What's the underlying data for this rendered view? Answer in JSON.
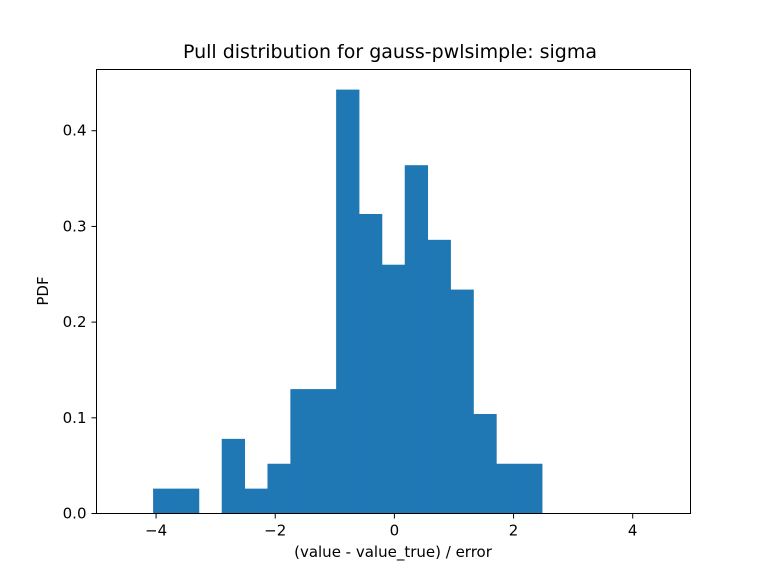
{
  "chart_data": {
    "type": "bar",
    "title": "Pull distribution for gauss-pwlsimple: sigma",
    "xlabel": "(value - value_true) / error",
    "ylabel": "PDF",
    "xlim": [
      -5.0,
      4.97
    ],
    "ylim": [
      0.0,
      0.464
    ],
    "xticks": [
      -4,
      -2,
      0,
      2,
      4
    ],
    "xtick_labels": [
      "−4",
      "−2",
      "0",
      "2",
      "4"
    ],
    "yticks": [
      0.0,
      0.1,
      0.2,
      0.3,
      0.4
    ],
    "ytick_labels": [
      "0.0",
      "0.1",
      "0.2",
      "0.3",
      "0.4"
    ],
    "grid": false,
    "color": "#1f77b4",
    "bin_edges": [
      -4.05,
      -3.666,
      -3.282,
      -2.898,
      -2.514,
      -2.13,
      -1.746,
      -1.362,
      -0.978,
      -0.594,
      -0.21,
      0.174,
      0.558,
      0.942,
      1.326,
      1.71,
      2.094,
      2.478
    ],
    "values": [
      0.026,
      0.026,
      0.0,
      0.078,
      0.026,
      0.052,
      0.13,
      0.13,
      0.443,
      0.313,
      0.26,
      0.364,
      0.286,
      0.234,
      0.104,
      0.052,
      0.052
    ]
  }
}
